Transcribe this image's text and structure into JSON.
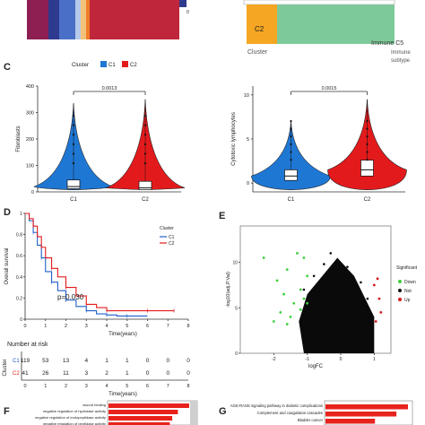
{
  "panel_labels": {
    "c": "C",
    "d": "D",
    "e": "E",
    "f": "F",
    "g": "G"
  },
  "top_strip": {
    "legend_value": "0",
    "left_colors": [
      "#8d1f52",
      "#2e3a8f",
      "#4a6fc7",
      "#b7c9ea",
      "#f2c27a",
      "#f07c2a",
      "#c0263b"
    ],
    "right_box_label": "C2",
    "right_left_caption": "Cluster",
    "right_right_caption": "Immune C5",
    "right_right_sub1": "Immune",
    "right_right_sub2": "subtype",
    "colors": {
      "orange": "#f5a623",
      "green": "#7ec99a"
    }
  },
  "panel_c": {
    "legend_title": "Cluster",
    "legend_items": [
      {
        "name": "C1",
        "color": "#1f77d4"
      },
      {
        "name": "C2",
        "color": "#e31a1c"
      }
    ]
  },
  "chart_data": [
    {
      "type": "violin",
      "ylabel": "Fibroblasts",
      "ylim": [
        0,
        400
      ],
      "yticks": [
        0,
        100,
        200,
        300,
        400
      ],
      "categories": [
        "C1",
        "C2"
      ],
      "pvalue": "0.0013",
      "median": [
        20,
        15
      ],
      "q1": [
        12,
        8
      ],
      "q3": [
        45,
        40
      ],
      "max": [
        335,
        350
      ],
      "colors": [
        "#1f77d4",
        "#e31a1c"
      ]
    },
    {
      "type": "violin",
      "ylabel": "Cytotoxic lymphocytes",
      "ylim": [
        -1,
        11
      ],
      "yticks": [
        0,
        5,
        10
      ],
      "categories": [
        "C1",
        "C2"
      ],
      "pvalue": "0.0015",
      "median": [
        0.8,
        1.5
      ],
      "q1": [
        0.3,
        0.8
      ],
      "q3": [
        1.5,
        2.6
      ],
      "max": [
        7,
        9.5
      ],
      "colors": [
        "#1f77d4",
        "#e31a1c"
      ]
    },
    {
      "type": "line",
      "title": "",
      "xlabel": "Time(years)",
      "ylabel": "Overall survival",
      "xlim": [
        0,
        8
      ],
      "ylim": [
        0,
        1
      ],
      "xticks": [
        0,
        1,
        2,
        3,
        4,
        5,
        6,
        7,
        8
      ],
      "yticks": [
        0.0,
        0.2,
        0.4,
        0.6,
        0.8,
        1.0
      ],
      "pvalue_label": "p=0.030",
      "legend_title": "Cluster",
      "series": [
        {
          "name": "C1",
          "color": "#1f5fc9",
          "x": [
            0,
            0.2,
            0.4,
            0.6,
            0.8,
            1.0,
            1.3,
            1.6,
            2.0,
            2.5,
            3.0,
            3.5,
            4.0,
            4.5,
            5.0,
            6.0
          ],
          "y": [
            1.0,
            0.93,
            0.82,
            0.7,
            0.58,
            0.45,
            0.35,
            0.27,
            0.18,
            0.12,
            0.08,
            0.05,
            0.04,
            0.03,
            0.03,
            0.03
          ]
        },
        {
          "name": "C2",
          "color": "#e31a1c",
          "x": [
            0,
            0.2,
            0.4,
            0.6,
            0.8,
            1.0,
            1.3,
            1.6,
            2.0,
            2.5,
            3.0,
            3.5,
            4.0,
            5.0,
            6.0,
            7.0,
            7.3
          ],
          "y": [
            1.0,
            0.95,
            0.88,
            0.78,
            0.68,
            0.58,
            0.48,
            0.4,
            0.3,
            0.22,
            0.14,
            0.11,
            0.08,
            0.08,
            0.08,
            0.08,
            0.08
          ]
        }
      ]
    },
    {
      "type": "scatter",
      "xlabel": "logFC",
      "ylabel": "-log10(adj.P.Val)",
      "xlim": [
        -3,
        1.5
      ],
      "ylim": [
        0,
        14
      ],
      "xticks": [
        -2,
        -1,
        0,
        1
      ],
      "yticks": [
        0,
        5,
        10
      ],
      "legend_title": "Significant",
      "legend_items": [
        {
          "name": "Down",
          "color": "#3ecf3e"
        },
        {
          "name": "Not",
          "color": "#111111"
        },
        {
          "name": "Up",
          "color": "#d7191c"
        }
      ],
      "points_down": [
        [
          -2.3,
          10.5
        ],
        [
          -1.9,
          8.0
        ],
        [
          -1.6,
          9.2
        ],
        [
          -1.3,
          11.0
        ],
        [
          -1.1,
          10.5
        ],
        [
          -1.7,
          6.5
        ],
        [
          -1.4,
          5.5
        ],
        [
          -1.2,
          7.0
        ],
        [
          -1.0,
          8.5
        ],
        [
          -1.8,
          4.5
        ],
        [
          -1.5,
          4.0
        ],
        [
          -1.2,
          4.8
        ],
        [
          -2.0,
          3.5
        ],
        [
          -1.1,
          6.0
        ],
        [
          -1.6,
          3.2
        ],
        [
          -1.0,
          5.5
        ]
      ],
      "points_up": [
        [
          1.1,
          8.2
        ],
        [
          1.0,
          7.5
        ],
        [
          1.2,
          4.5
        ],
        [
          1.05,
          3.5
        ],
        [
          1.15,
          6.0
        ]
      ]
    },
    {
      "type": "table",
      "title": "Number at risk",
      "xlabel": "Time(years)",
      "ylabel": "Cluster",
      "rows": [
        {
          "name": "C1",
          "color": "#1f5fc9",
          "values": [
            "119",
            "53",
            "13",
            "4",
            "1",
            "1",
            "0",
            "0",
            "0"
          ]
        },
        {
          "name": "C2",
          "color": "#e31a1c",
          "values": [
            "41",
            "26",
            "11",
            "3",
            "2",
            "1",
            "0",
            "0",
            "0"
          ]
        }
      ],
      "xticks": [
        0,
        1,
        2,
        3,
        4,
        5,
        6,
        7,
        8
      ]
    },
    {
      "type": "bar",
      "categories": [
        "wound healing",
        "negative regulation of hydrolase activity",
        "negative regulation of endopeptidase activity",
        "negative regulation of peptidase activity"
      ],
      "values": [
        1.0,
        0.86,
        0.79,
        0.76
      ]
    },
    {
      "type": "bar",
      "categories": [
        "AGE-RAGE signaling pathway in diabetic complications",
        "Complement and coagulation cascades",
        "Bladder cancer"
      ],
      "values": [
        1.0,
        0.86,
        0.6
      ]
    }
  ]
}
